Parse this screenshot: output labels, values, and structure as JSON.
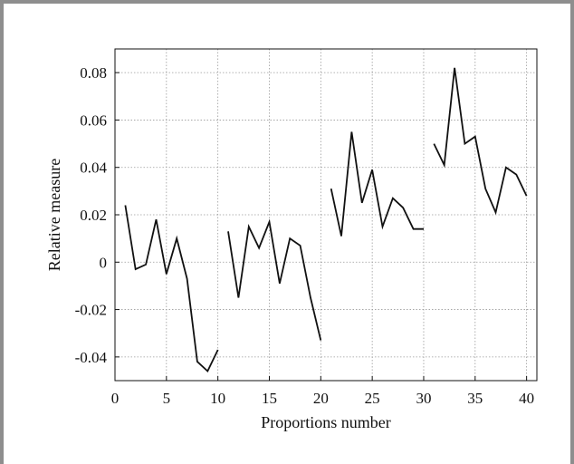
{
  "chart_data": {
    "type": "line",
    "title": "",
    "xlabel": "Proportions number",
    "ylabel": "Relative measure",
    "xlim": [
      0,
      41
    ],
    "ylim": [
      -0.05,
      0.09
    ],
    "grid": true,
    "x_ticks": [
      0,
      5,
      10,
      15,
      20,
      25,
      30,
      35,
      40
    ],
    "x_tick_labels": [
      "0",
      "5",
      "10",
      "15",
      "20",
      "25",
      "30",
      "35",
      "40"
    ],
    "y_ticks": [
      -0.04,
      -0.02,
      0,
      0.02,
      0.04,
      0.06,
      0.08
    ],
    "y_tick_labels": [
      "-0.04",
      "-0.02",
      "0",
      "0.02",
      "0.04",
      "0.06",
      "0.08"
    ],
    "line_color": "#111111",
    "grid_color": "#9a9a9a",
    "series": [
      {
        "x": [
          1,
          2,
          3,
          4,
          5,
          6,
          7,
          8,
          9,
          10
        ],
        "values": [
          0.024,
          -0.003,
          -0.001,
          0.018,
          -0.005,
          0.01,
          -0.007,
          -0.042,
          -0.046,
          -0.037
        ]
      },
      {
        "x": [
          11,
          12,
          13,
          14,
          15,
          16,
          17,
          18,
          19,
          20
        ],
        "values": [
          0.013,
          -0.015,
          0.015,
          0.006,
          0.017,
          -0.009,
          0.01,
          0.007,
          -0.015,
          -0.033
        ]
      },
      {
        "x": [
          21,
          22,
          23,
          24,
          25,
          26,
          27,
          28,
          29,
          30
        ],
        "values": [
          0.031,
          0.011,
          0.055,
          0.025,
          0.039,
          0.015,
          0.027,
          0.023,
          0.014,
          0.014
        ]
      },
      {
        "x": [
          31,
          32,
          33,
          34,
          35,
          36,
          37,
          38,
          39,
          40
        ],
        "values": [
          0.05,
          0.041,
          0.082,
          0.05,
          0.053,
          0.031,
          0.021,
          0.04,
          0.037,
          0.028
        ]
      }
    ]
  }
}
